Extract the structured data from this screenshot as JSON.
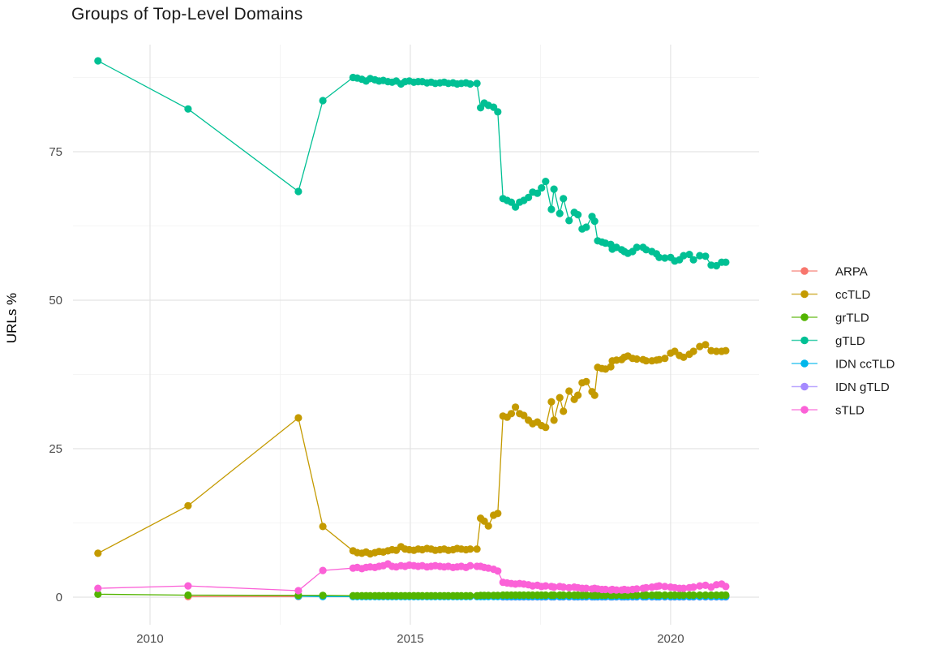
{
  "chart_data": {
    "type": "line",
    "title": "Groups of Top-Level Domains",
    "xlabel": "",
    "ylabel": "URLs %",
    "legend_position": "right",
    "grid": true,
    "x_ticks": [
      2010,
      2015,
      2020
    ],
    "x_minor_ticks": [
      2012.5,
      2017.5
    ],
    "y_ticks": [
      0,
      25,
      50,
      75
    ],
    "y_minor_ticks": [
      12.5,
      37.5,
      62.5,
      87.5
    ],
    "xlim": [
      2008.52,
      2021.7
    ],
    "ylim": [
      -4.64,
      93.03
    ],
    "x_grids": {
      "early": [
        2009.0,
        2010.73,
        2012.85,
        2013.32
      ],
      "arpa": [
        2010.73,
        2012.85
      ],
      "idn": [
        2012.85,
        2013.32
      ],
      "d1": [
        2013.9,
        2013.98,
        2014.07,
        2014.15,
        2014.23,
        2014.32,
        2014.4,
        2014.48,
        2014.57,
        2014.65,
        2014.73,
        2014.82,
        2014.9,
        2014.98,
        2015.07,
        2015.15,
        2015.23,
        2015.32,
        2015.4,
        2015.48,
        2015.57,
        2015.65,
        2015.73,
        2015.82,
        2015.9,
        2015.98,
        2016.07,
        2016.15,
        2016.28
      ],
      "mid": [
        2016.35,
        2016.42,
        2016.5,
        2016.6,
        2016.68
      ],
      "d2": [
        2016.78,
        2016.86,
        2016.94,
        2017.02,
        2017.1,
        2017.18,
        2017.27,
        2017.35,
        2017.44,
        2017.52,
        2017.6,
        2017.71,
        2017.76,
        2017.87,
        2017.94,
        2018.05,
        2018.15,
        2018.22,
        2018.3,
        2018.38,
        2018.49,
        2018.54,
        2018.6,
        2018.68,
        2018.75,
        2018.85,
        2018.88,
        2018.96,
        2019.06,
        2019.11,
        2019.18,
        2019.27,
        2019.35,
        2019.47,
        2019.53,
        2019.64,
        2019.73,
        2019.78,
        2019.89,
        2020.0,
        2020.08,
        2020.17,
        2020.25,
        2020.36,
        2020.44,
        2020.56,
        2020.67,
        2020.78,
        2020.88,
        2020.98,
        2021.06
      ]
    },
    "series": [
      {
        "name": "ARPA",
        "color": "#F8766D",
        "parts": {
          "arpa": [
            0.1,
            0.12
          ]
        }
      },
      {
        "name": "ccTLD",
        "color": "#C49A00",
        "parts": {
          "early": [
            7.4,
            15.4,
            30.2,
            11.9
          ],
          "d1": [
            7.8,
            7.5,
            7.4,
            7.6,
            7.3,
            7.5,
            7.7,
            7.6,
            7.8,
            8.0,
            7.9,
            8.5,
            8.1,
            8.0,
            7.9,
            8.1,
            8.0,
            8.2,
            8.1,
            7.9,
            8.0,
            8.1,
            7.9,
            8.0,
            8.2,
            8.1,
            8.0,
            8.1,
            8.1
          ],
          "mid": [
            13.3,
            12.8,
            12.0,
            13.8,
            14.1
          ],
          "d2": [
            30.5,
            30.3,
            30.9,
            32.0,
            30.9,
            30.6,
            29.8,
            29.2,
            29.5,
            28.9,
            28.6,
            32.9,
            29.8,
            33.6,
            31.3,
            34.7,
            33.3,
            34.0,
            36.1,
            36.3,
            34.6,
            34.0,
            38.7,
            38.5,
            38.4,
            38.8,
            39.8,
            39.9,
            40.0,
            40.4,
            40.6,
            40.2,
            40.1,
            40.0,
            39.8,
            39.8,
            39.9,
            40.0,
            40.2,
            41.1,
            41.4,
            40.7,
            40.4,
            40.9,
            41.4,
            42.2,
            42.5,
            41.5,
            41.4,
            41.4,
            41.5
          ]
        }
      },
      {
        "name": "grTLD",
        "color": "#53B400",
        "parts": {
          "early": [
            0.5,
            0.35,
            0.3,
            0.3
          ],
          "d1": {
            "const": 0.25
          },
          "mid": {
            "const": 0.3
          },
          "d2": {
            "const": 0.35
          }
        }
      },
      {
        "name": "gTLD",
        "color": "#00C094",
        "parts": {
          "early": [
            90.3,
            82.2,
            68.3,
            83.6
          ],
          "d1": [
            87.5,
            87.4,
            87.2,
            86.9,
            87.3,
            87.1,
            86.9,
            87.0,
            86.8,
            86.7,
            86.9,
            86.4,
            86.8,
            86.9,
            86.7,
            86.8,
            86.8,
            86.6,
            86.7,
            86.5,
            86.6,
            86.7,
            86.5,
            86.6,
            86.4,
            86.5,
            86.6,
            86.4,
            86.5
          ],
          "mid": [
            82.4,
            83.2,
            82.8,
            82.5,
            81.7
          ],
          "d2": [
            67.1,
            66.8,
            66.5,
            65.7,
            66.5,
            66.8,
            67.3,
            68.2,
            68.0,
            68.9,
            70.0,
            65.3,
            68.7,
            64.6,
            67.1,
            63.4,
            64.8,
            64.4,
            62.0,
            62.3,
            64.1,
            63.3,
            60.0,
            59.8,
            59.6,
            59.4,
            58.6,
            58.9,
            58.5,
            58.2,
            57.9,
            58.2,
            58.9,
            58.9,
            58.5,
            58.2,
            57.8,
            57.2,
            57.1,
            57.2,
            56.6,
            56.8,
            57.5,
            57.7,
            56.8,
            57.5,
            57.4,
            55.9,
            55.8,
            56.4,
            56.4
          ]
        }
      },
      {
        "name": "IDN ccTLD",
        "color": "#00B6EB",
        "parts": {
          "idn": [
            0.15,
            0.1
          ],
          "d1": {
            "const": 0.1
          },
          "mid": {
            "const": 0.1
          },
          "d2": {
            "const": 0.1
          }
        }
      },
      {
        "name": "IDN gTLD",
        "color": "#A58AFF",
        "parts": {
          "d2": {
            "const": 0.05
          }
        }
      },
      {
        "name": "sTLD",
        "color": "#FB61D7",
        "parts": {
          "early": [
            1.5,
            1.9,
            1.1,
            4.5
          ],
          "d1": [
            4.9,
            5.0,
            4.8,
            5.0,
            5.1,
            5.0,
            5.2,
            5.3,
            5.6,
            5.2,
            5.1,
            5.3,
            5.2,
            5.4,
            5.3,
            5.2,
            5.3,
            5.1,
            5.2,
            5.3,
            5.2,
            5.1,
            5.2,
            5.0,
            5.1,
            5.2,
            5.0,
            5.3,
            5.2
          ],
          "mid": [
            5.2,
            5.0,
            4.9,
            4.7,
            4.4
          ],
          "d2": [
            2.5,
            2.4,
            2.3,
            2.2,
            2.3,
            2.2,
            2.1,
            1.9,
            2.0,
            1.8,
            1.9,
            1.8,
            1.7,
            1.8,
            1.7,
            1.6,
            1.7,
            1.6,
            1.5,
            1.5,
            1.4,
            1.5,
            1.4,
            1.3,
            1.3,
            1.2,
            1.3,
            1.2,
            1.2,
            1.3,
            1.2,
            1.3,
            1.4,
            1.5,
            1.6,
            1.7,
            1.8,
            1.9,
            1.8,
            1.7,
            1.6,
            1.5,
            1.5,
            1.6,
            1.7,
            1.9,
            2.0,
            1.7,
            2.1,
            2.2,
            1.8
          ]
        }
      }
    ],
    "draw_order": [
      "ARPA",
      "IDN gTLD",
      "IDN ccTLD",
      "grTLD",
      "ccTLD",
      "gTLD",
      "sTLD"
    ]
  },
  "colors": {
    "background": "#FFFFFF",
    "grid_major": "#E4E4E4",
    "grid_minor": "#F2F2F2",
    "tick_label": "#4D4D4D",
    "title": "#1A1A1A",
    "legend_label": "#1A1A1A"
  }
}
